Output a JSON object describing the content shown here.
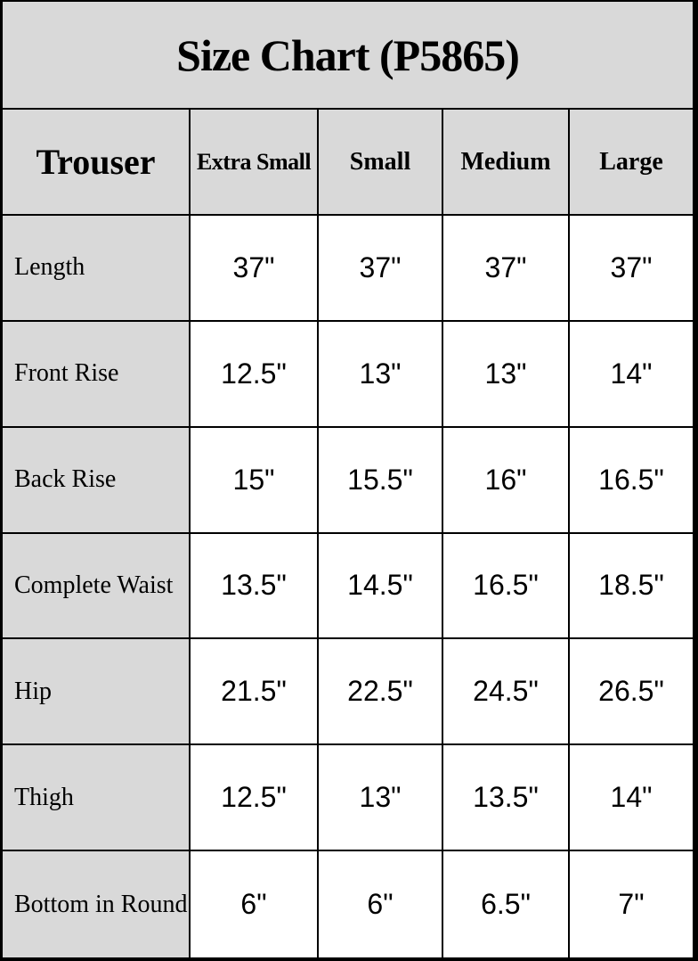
{
  "title": "Size Chart (P5865)",
  "table": {
    "corner_label": "Trouser",
    "columns": [
      "Extra Small",
      "Small",
      "Medium",
      "Large"
    ],
    "rows": [
      {
        "label": "Length",
        "values": [
          "37\"",
          "37\"",
          "37\"",
          "37\""
        ]
      },
      {
        "label": "Front Rise",
        "values": [
          "12.5\"",
          "13\"",
          "13\"",
          "14\""
        ]
      },
      {
        "label": "Back Rise",
        "values": [
          "15\"",
          "15.5\"",
          "16\"",
          "16.5\""
        ]
      },
      {
        "label": "Complete Waist",
        "values": [
          "13.5\"",
          "14.5\"",
          "16.5\"",
          "18.5\""
        ]
      },
      {
        "label": "Hip",
        "values": [
          "21.5\"",
          "22.5\"",
          "24.5\"",
          "26.5\""
        ]
      },
      {
        "label": "Thigh",
        "values": [
          "12.5\"",
          "13\"",
          "13.5\"",
          "14\""
        ]
      },
      {
        "label": "Bottom in Round",
        "values": [
          "6\"",
          "6\"",
          "6.5\"",
          "7\""
        ]
      }
    ]
  },
  "colors": {
    "header_background": "#d9d9d9",
    "cell_background": "#ffffff",
    "border": "#000000",
    "text": "#000000"
  }
}
